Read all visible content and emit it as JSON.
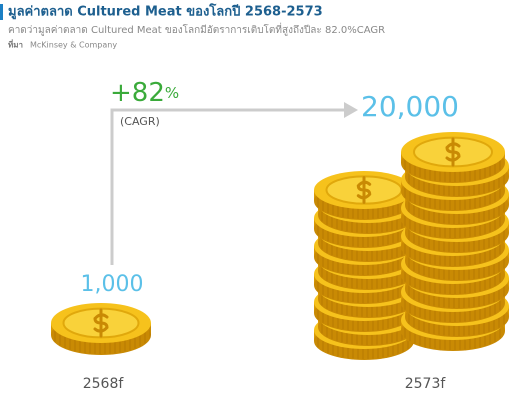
{
  "header": {
    "title": "มูลค่าตลาด Cultured Meat ของโลกปี 2568-2573",
    "subtitle": "คาดว่ามูลค่าตลาด Cultured Meat ของโลกมีอัตราการเติบโตที่สูงถึงปีละ 82.0%CAGR",
    "source_label": "ที่มา",
    "source": "McKinsey & Company"
  },
  "growth": {
    "value": "+82",
    "unit": "%",
    "note": "(CAGR)"
  },
  "items": [
    {
      "label": "1,000",
      "year": "2568f"
    },
    {
      "label": "20,000",
      "year": "2573f"
    }
  ]
}
